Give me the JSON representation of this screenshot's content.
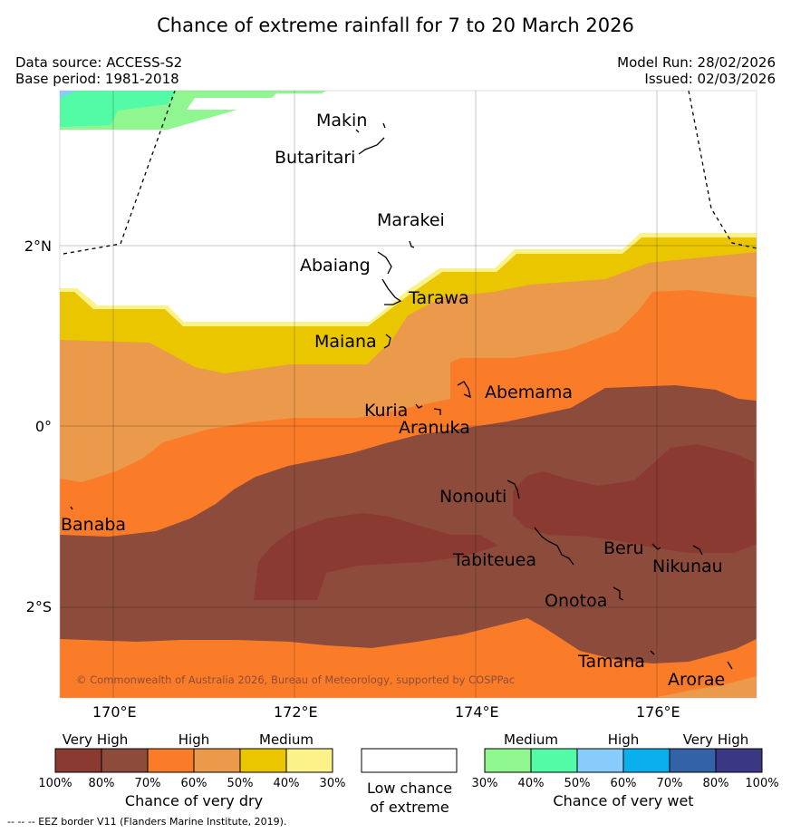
{
  "title": "Chance of extreme rainfall for 7 to 20 March 2026",
  "meta": {
    "data_source": "Data source: ACCESS-S2",
    "base_period": "Base period: 1981-2018",
    "model_run": "Model Run: 28/02/2026",
    "issued": "Issued: 02/03/2026"
  },
  "axes": {
    "lat_labels": [
      "2°N",
      "0°",
      "2°S"
    ],
    "lon_labels": [
      "170°E",
      "172°E",
      "174°E",
      "176°E"
    ]
  },
  "places": [
    "Makin",
    "Butaritari",
    "Marakei",
    "Abaiang",
    "Tarawa",
    "Maiana",
    "Abemama",
    "Kuria",
    "Aranuka",
    "Nonouti",
    "Banaba",
    "Tabiteuea",
    "Beru",
    "Nikunau",
    "Onotoa",
    "Tamana",
    "Arorae"
  ],
  "copyright": "© Commonwealth of Australia 2026, Bureau of Meteorology, supported by COSPPac",
  "legend": {
    "dry": {
      "headers": [
        "Very High",
        "High",
        "Medium"
      ],
      "ticks": [
        "100%",
        "80%",
        "70%",
        "60%",
        "50%",
        "40%",
        "30%"
      ],
      "colors": [
        "#8b3a31",
        "#8d4c3b",
        "#fb7c28",
        "#ea9a4a",
        "#e9c600",
        "#fbf28a"
      ],
      "caption": "Chance of very dry"
    },
    "low": {
      "caption_line1": "Low chance",
      "caption_line2": "of extreme"
    },
    "wet": {
      "headers": [
        "Medium",
        "High",
        "Very High"
      ],
      "ticks": [
        "30%",
        "40%",
        "50%",
        "60%",
        "70%",
        "80%",
        "100%"
      ],
      "colors": [
        "#90f690",
        "#54fba7",
        "#87ccfa",
        "#0ab0ee",
        "#3462a7",
        "#3a3883"
      ],
      "caption": "Chance of very wet"
    }
  },
  "footnote": "--  --  -- EEZ border V11 (Flanders Marine Institute, 2019)."
}
